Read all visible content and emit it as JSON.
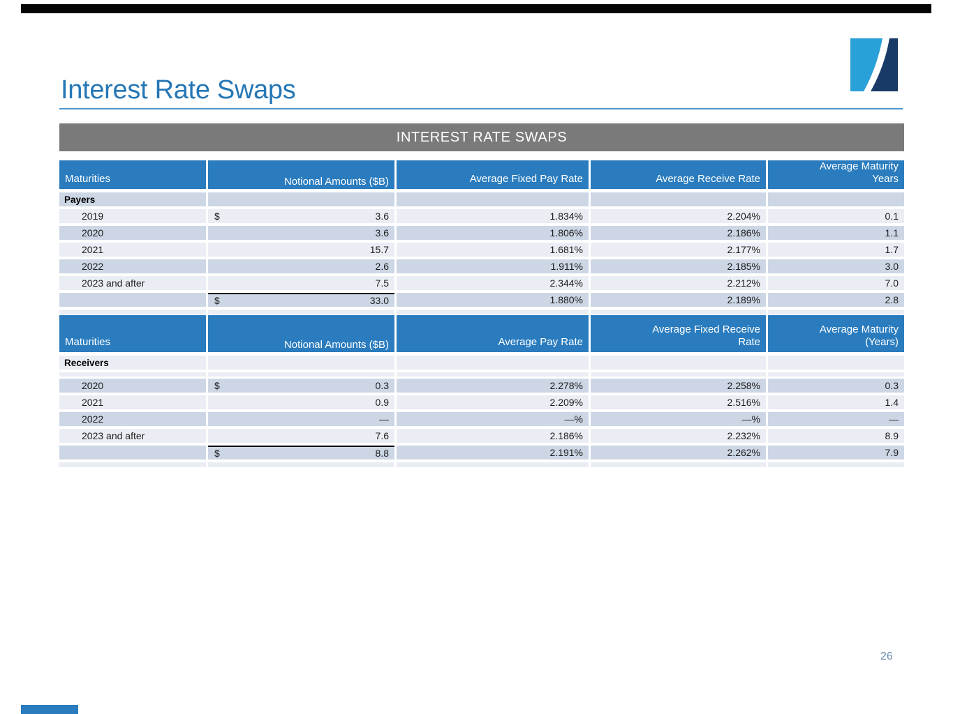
{
  "page": {
    "title": "Interest Rate Swaps",
    "banner_title": "INTEREST RATE SWAPS",
    "page_number": "26"
  },
  "logo": {
    "icon": "company-logo-swoosh-icon"
  },
  "colors": {
    "title_blue": "#2577b5",
    "rule_blue": "#4e94cc",
    "banner_gray": "#7a7a7a",
    "header_blue": "#2a7cbe",
    "row_light": "#eaedf3",
    "row_dark": "#ccd6e5",
    "logo_light_blue": "#29a0d8",
    "logo_navy": "#193a66",
    "top_bar_black": "#060606",
    "page_number_blue": "#6a8cad"
  },
  "tables": {
    "payers": {
      "columns": [
        "Maturities",
        "Notional Amounts ($B)",
        "Average Fixed Pay Rate",
        "Average Receive Rate",
        "Average Maturity\nYears"
      ],
      "group_label": "Payers",
      "rows": [
        {
          "maturity": "2019",
          "dollar": "$",
          "notional": "3.6",
          "rate1": "1.834%",
          "rate2": "2.204%",
          "avg_maturity": "0.1"
        },
        {
          "maturity": "2020",
          "dollar": "",
          "notional": "3.6",
          "rate1": "1.806%",
          "rate2": "2.186%",
          "avg_maturity": "1.1"
        },
        {
          "maturity": "2021",
          "dollar": "",
          "notional": "15.7",
          "rate1": "1.681%",
          "rate2": "2.177%",
          "avg_maturity": "1.7"
        },
        {
          "maturity": "2022",
          "dollar": "",
          "notional": "2.6",
          "rate1": "1.911%",
          "rate2": "2.185%",
          "avg_maturity": "3.0"
        },
        {
          "maturity": "2023 and after",
          "dollar": "",
          "notional": "7.5",
          "rate1": "2.344%",
          "rate2": "2.212%",
          "avg_maturity": "7.0"
        }
      ],
      "total": {
        "maturity": "",
        "dollar": "$",
        "notional": "33.0",
        "rate1": "1.880%",
        "rate2": "2.189%",
        "avg_maturity": "2.8"
      }
    },
    "receivers": {
      "columns": [
        "Maturities",
        "Notional Amounts ($B)",
        "Average Pay Rate",
        "Average Fixed Receive\nRate",
        "Average Maturity\n(Years)"
      ],
      "group_label": "Receivers",
      "rows": [
        {
          "maturity": "2020",
          "dollar": "$",
          "notional": "0.3",
          "rate1": "2.278%",
          "rate2": "2.258%",
          "avg_maturity": "0.3"
        },
        {
          "maturity": "2021",
          "dollar": "",
          "notional": "0.9",
          "rate1": "2.209%",
          "rate2": "2.516%",
          "avg_maturity": "1.4"
        },
        {
          "maturity": "2022",
          "dollar": "",
          "notional": "—",
          "rate1": "—%",
          "rate2": "—%",
          "avg_maturity": "—"
        },
        {
          "maturity": "2023 and after",
          "dollar": "",
          "notional": "7.6",
          "rate1": "2.186%",
          "rate2": "2.232%",
          "avg_maturity": "8.9"
        }
      ],
      "total": {
        "maturity": "",
        "dollar": "$",
        "notional": "8.8",
        "rate1": "2.191%",
        "rate2": "2.262%",
        "avg_maturity": "7.9"
      }
    }
  }
}
